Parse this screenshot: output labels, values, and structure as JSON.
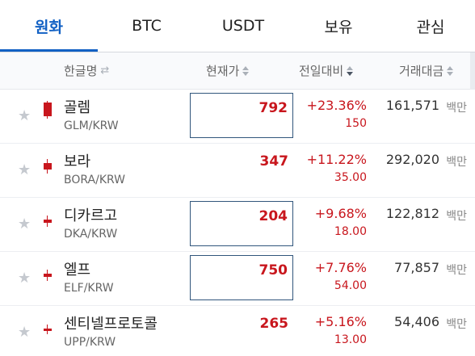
{
  "tabs": [
    {
      "label": "원화",
      "active": true
    },
    {
      "label": "BTC",
      "active": false
    },
    {
      "label": "USDT",
      "active": false
    },
    {
      "label": "보유",
      "active": false
    },
    {
      "label": "관심",
      "active": false
    }
  ],
  "header": {
    "name": "한글명",
    "price": "현재가",
    "change": "전일대비",
    "volume": "거래대금"
  },
  "colors": {
    "accent": "#1261c4",
    "rise": "#c8161d",
    "highlight_border": "#31567c"
  },
  "rows": [
    {
      "name": "골렘",
      "symbol": "GLM/KRW",
      "price": "792",
      "pct": "+23.36%",
      "chg": "150",
      "volume": "161,571",
      "unit": "백만",
      "highlighted": true
    },
    {
      "name": "보라",
      "symbol": "BORA/KRW",
      "price": "347",
      "pct": "+11.22%",
      "chg": "35.00",
      "volume": "292,020",
      "unit": "백만",
      "highlighted": false
    },
    {
      "name": "디카르고",
      "symbol": "DKA/KRW",
      "price": "204",
      "pct": "+9.68%",
      "chg": "18.00",
      "volume": "122,812",
      "unit": "백만",
      "highlighted": true
    },
    {
      "name": "엘프",
      "symbol": "ELF/KRW",
      "price": "750",
      "pct": "+7.76%",
      "chg": "54.00",
      "volume": "77,857",
      "unit": "백만",
      "highlighted": true
    },
    {
      "name": "센티넬프로토콜",
      "symbol": "UPP/KRW",
      "price": "265",
      "pct": "+5.16%",
      "chg": "13.00",
      "volume": "54,406",
      "unit": "백만",
      "highlighted": false
    }
  ]
}
